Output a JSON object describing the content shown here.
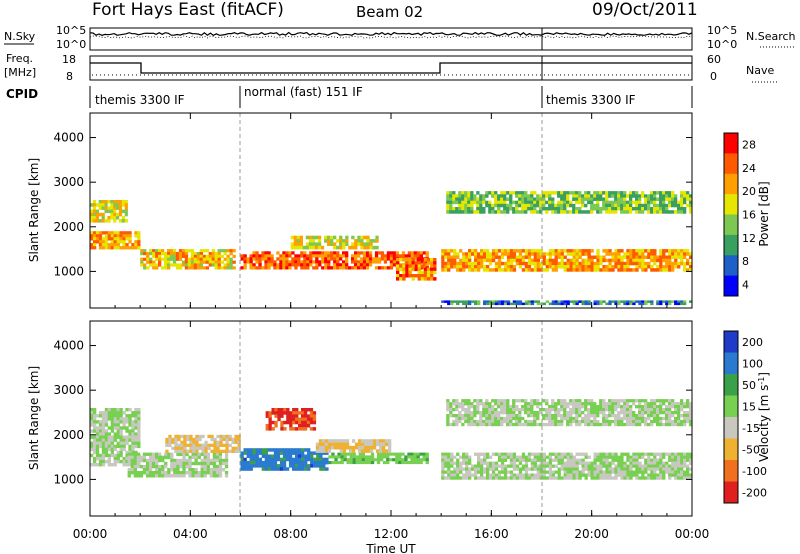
{
  "header": {
    "station": "Fort Hays East (fitACF)",
    "beam": "Beam 02",
    "date": "09/Oct/2011"
  },
  "side_labels": {
    "nsky": "N.Sky",
    "nsearch": "N.Search",
    "freq_line1": "Freq.",
    "freq_line2": "[MHz]",
    "nave": "Nave",
    "cpid": "CPID"
  },
  "noise_panel": {
    "left_ticks": [
      "10^5",
      "10^0"
    ],
    "right_ticks": [
      "10^5",
      "10^0"
    ]
  },
  "freq_panel": {
    "left_ticks": [
      "18",
      "8"
    ],
    "right_ticks": [
      "60",
      "0"
    ]
  },
  "cpid_segments": [
    {
      "label": "themis 3300 IF",
      "start_hour": 0
    },
    {
      "label": "normal (fast) 151 IF",
      "start_hour": 6
    },
    {
      "label": "themis 3300 IF",
      "start_hour": 18
    }
  ],
  "colors": {
    "power_scale": [
      "#0000ff",
      "#1f5fc8",
      "#3aa060",
      "#7dc850",
      "#e6e600",
      "#ffa000",
      "#ff5a00",
      "#ff0000"
    ],
    "velocity_scale": [
      "#1e3cc8",
      "#2a7ad0",
      "#3aa04a",
      "#78d050",
      "#c8c8c0",
      "#f0b030",
      "#f07020",
      "#e02020"
    ]
  },
  "chart_data": [
    {
      "type": "heatmap",
      "ylabel": "Slant Range [km]",
      "yticks": [
        1000,
        2000,
        3000,
        4000
      ],
      "ylim": [
        180,
        4550
      ],
      "xlim": [
        0,
        24
      ],
      "xticks": [
        "00:00",
        "04:00",
        "08:00",
        "12:00",
        "16:00",
        "20:00",
        "00:00"
      ],
      "colorbar": {
        "label": "Power [dB]",
        "ticks": [
          "28",
          "24",
          "20",
          "16",
          "12",
          "8",
          "4"
        ],
        "range": [
          0,
          32
        ]
      },
      "bands": [
        {
          "t0": 0,
          "t1": 2,
          "r0": 1500,
          "r1": 1900,
          "value": 22
        },
        {
          "t0": 0,
          "t1": 1.5,
          "r0": 2100,
          "r1": 2600,
          "value": 18
        },
        {
          "t0": 2,
          "t1": 5.8,
          "r0": 1050,
          "r1": 1500,
          "value": 20
        },
        {
          "t0": 6,
          "t1": 13.5,
          "r0": 1050,
          "r1": 1450,
          "value": 26
        },
        {
          "t0": 8,
          "t1": 11.5,
          "r0": 1500,
          "r1": 1800,
          "value": 18
        },
        {
          "t0": 12.2,
          "t1": 13.8,
          "r0": 800,
          "r1": 1300,
          "value": 24
        },
        {
          "t0": 14,
          "t1": 24,
          "r0": 1000,
          "r1": 1500,
          "value": 22
        },
        {
          "t0": 14.2,
          "t1": 24,
          "r0": 2300,
          "r1": 2800,
          "value": 14
        },
        {
          "t0": 14,
          "t1": 24,
          "r0": 250,
          "r1": 350,
          "value": 8
        }
      ]
    },
    {
      "type": "heatmap",
      "ylabel": "Slant Range [km]",
      "yticks": [
        1000,
        2000,
        3000,
        4000
      ],
      "ylim": [
        180,
        4550
      ],
      "xlim": [
        0,
        24
      ],
      "xticks": [
        "00:00",
        "04:00",
        "08:00",
        "12:00",
        "16:00",
        "20:00",
        "00:00"
      ],
      "xlabel": "Time UT",
      "colorbar": {
        "label": "Velocity [m s",
        "label_sup": "-1",
        "label_end": "]",
        "ticks": [
          "200",
          "100",
          "50",
          "15",
          "-15",
          "-50",
          "-100",
          "-200"
        ],
        "range": [
          -250,
          250
        ]
      },
      "bands": [
        {
          "t0": 0,
          "t1": 2,
          "r0": 1300,
          "r1": 2600,
          "value": 0
        },
        {
          "t0": 1.5,
          "t1": 5.5,
          "r0": 1050,
          "r1": 1600,
          "value": 0
        },
        {
          "t0": 3,
          "t1": 6,
          "r0": 1600,
          "r1": 2000,
          "value": -60
        },
        {
          "t0": 6,
          "t1": 9.5,
          "r0": 1200,
          "r1": 1700,
          "value": 150
        },
        {
          "t0": 9.5,
          "t1": 13.5,
          "r0": 1350,
          "r1": 1600,
          "value": 40
        },
        {
          "t0": 9,
          "t1": 12,
          "r0": 1600,
          "r1": 1900,
          "value": -60
        },
        {
          "t0": 14,
          "t1": 24,
          "r0": 1000,
          "r1": 1600,
          "value": 0
        },
        {
          "t0": 14.2,
          "t1": 24,
          "r0": 2200,
          "r1": 2800,
          "value": 0
        },
        {
          "t0": 7,
          "t1": 9,
          "r0": 2100,
          "r1": 2600,
          "value": -200
        }
      ]
    }
  ]
}
